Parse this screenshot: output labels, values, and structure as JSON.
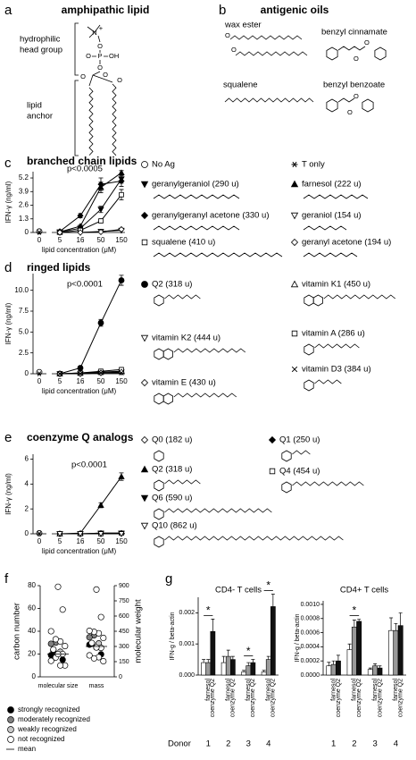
{
  "panel_a": {
    "label": "a",
    "title": "amphipathic lipid",
    "head_label": [
      "hydrophilic",
      "head group"
    ],
    "anchor_label": [
      "lipid",
      "anchor"
    ],
    "atoms": [
      "N",
      "+",
      "O",
      "O",
      "P",
      "OH",
      "O",
      "O",
      "O",
      "O"
    ]
  },
  "panel_b": {
    "label": "b",
    "title": "antigenic oils",
    "compounds": [
      "wax ester",
      "benzyl cinnamate",
      "squalene",
      "benzyl benzoate"
    ],
    "atoms": [
      "O",
      "O",
      "O",
      "O",
      "O",
      "O"
    ]
  },
  "chart_data": [
    {
      "type": "line",
      "panel": "c",
      "title": "branched chain lipids",
      "annotation": "p<0.0005",
      "x_label": "lipid concentration (μM)",
      "y_label": "IFN-γ (ng/ml)",
      "categories": [
        "0",
        "5",
        "16",
        "50",
        "150"
      ],
      "ylim": [
        0,
        5.8
      ],
      "yticks": [
        0,
        1.3,
        2.6,
        3.9,
        5.2
      ],
      "series": [
        {
          "name": "No Ag",
          "marker": "circle-open",
          "color": "#000000",
          "values": [
            0.1,
            null,
            null,
            null,
            null
          ]
        },
        {
          "name": "T only",
          "marker": "asterisk",
          "color": "#000000",
          "values": [
            0,
            null,
            null,
            null,
            null
          ]
        },
        {
          "name": "geranylgeraniol (290 u)",
          "marker": "triangle-down-filled",
          "color": "#000000",
          "values": [
            null,
            0.05,
            0.4,
            2.2,
            5.1
          ],
          "errors": [
            null,
            0.02,
            0.1,
            0.3,
            0.4
          ]
        },
        {
          "name": "farnesol (222 u)",
          "marker": "triangle-up-filled",
          "color": "#000000",
          "values": [
            null,
            0.05,
            0.6,
            4.3,
            5.7
          ],
          "errors": [
            null,
            0.02,
            0.1,
            0.5,
            0.2
          ]
        },
        {
          "name": "geranylgeranyl acetone (330 u)",
          "marker": "diamond-filled",
          "color": "#000000",
          "values": [
            null,
            0.1,
            1.6,
            4.6,
            4.9
          ],
          "errors": [
            null,
            0.05,
            0.2,
            0.6,
            0.5
          ]
        },
        {
          "name": "geraniol (154 u)",
          "marker": "triangle-down-open",
          "color": "#000000",
          "values": [
            null,
            0,
            0,
            0.1,
            0.2
          ]
        },
        {
          "name": "squalene (410 u)",
          "marker": "square-open",
          "color": "#000000",
          "values": [
            null,
            0,
            0.2,
            1.1,
            3.6
          ],
          "errors": [
            null,
            0,
            0.05,
            0.2,
            0.5
          ]
        },
        {
          "name": "geranyl acetone (194 u)",
          "marker": "diamond-open",
          "color": "#000000",
          "values": [
            null,
            0,
            0,
            0.05,
            0.3
          ]
        }
      ]
    },
    {
      "type": "line",
      "panel": "d",
      "title": "ringed lipids",
      "annotation": "p<0.0001",
      "x_label": "lipid concentration (μM)",
      "y_label": "IFN-γ (ng/ml)",
      "categories": [
        "0",
        "5",
        "16",
        "50",
        "150"
      ],
      "ylim": [
        0,
        12
      ],
      "yticks": [
        0,
        2.5,
        {
          "value": 5,
          "label": "5.0"
        },
        7.5,
        {
          "value": 10,
          "label": "10.0"
        }
      ],
      "series": [
        {
          "marker": "circle-open",
          "color": "#000000",
          "values": [
            0.2,
            null,
            null,
            null,
            null
          ]
        },
        {
          "marker": "asterisk",
          "color": "#000000",
          "values": [
            0,
            null,
            null,
            null,
            null
          ]
        },
        {
          "name": "Q2 (318 u)",
          "marker": "circle-filled",
          "color": "#000000",
          "values": [
            null,
            0,
            0.7,
            6.1,
            11.2
          ],
          "errors": [
            null,
            0,
            0.2,
            0.4,
            0.6
          ]
        },
        {
          "name": "vitamin K1 (450 u)",
          "marker": "triangle-up-open",
          "color": "#000000",
          "values": [
            null,
            0,
            0.1,
            0.2,
            0.3
          ]
        },
        {
          "name": "vitamin K2 (444 u)",
          "marker": "triangle-down-open",
          "color": "#000000",
          "values": [
            null,
            0,
            0,
            0.1,
            0.2
          ]
        },
        {
          "name": "vitamin A (286 u)",
          "marker": "square-open",
          "color": "#000000",
          "values": [
            null,
            0,
            0.1,
            0.3,
            0.5
          ]
        },
        {
          "name": "vitamin E (430 u)",
          "marker": "diamond-open",
          "color": "#000000",
          "values": [
            null,
            0,
            0,
            0.1,
            0.2
          ]
        },
        {
          "name": "vitamin D3 (384 u)",
          "marker": "cross",
          "color": "#000000",
          "values": [
            null,
            0,
            0,
            0.1,
            0.1
          ]
        }
      ]
    },
    {
      "type": "line",
      "panel": "e",
      "title": "coenzyme Q analogs",
      "annotation": "p<0.0001",
      "x_label": "lipid concentration (μM)",
      "y_label": "IFN-γ (ng/ml)",
      "categories": [
        "0",
        "5",
        "16",
        "50",
        "150"
      ],
      "ylim": [
        0,
        6.4
      ],
      "yticks": [
        0,
        2,
        4,
        6
      ],
      "series": [
        {
          "marker": "circle-open",
          "color": "#000000",
          "values": [
            0.05,
            null,
            null,
            null,
            null
          ]
        },
        {
          "marker": "asterisk",
          "color": "#000000",
          "values": [
            0,
            null,
            null,
            null,
            null
          ]
        },
        {
          "name": "Q0 (182 u)",
          "marker": "diamond-open",
          "color": "#000000",
          "values": [
            null,
            0,
            0,
            0,
            0.05
          ]
        },
        {
          "name": "Q1 (250 u)",
          "marker": "diamond-filled",
          "color": "#000000",
          "values": [
            null,
            0,
            0,
            0.05,
            0.05
          ]
        },
        {
          "name": "Q2 (318 u)",
          "marker": "triangle-up-filled",
          "color": "#000000",
          "values": [
            null,
            0,
            0.05,
            2.3,
            4.6
          ],
          "errors": [
            null,
            0,
            0,
            0.2,
            0.3
          ]
        },
        {
          "name": "Q4 (454 u)",
          "marker": "square-open",
          "color": "#000000",
          "values": [
            null,
            0,
            0,
            0,
            0.05
          ]
        },
        {
          "name": "Q6 (590 u)",
          "marker": "triangle-down-filled",
          "color": "#000000",
          "values": [
            null,
            0,
            0,
            0.05,
            0.05
          ]
        },
        {
          "name": "Q10 (862 u)",
          "marker": "triangle-down-open",
          "color": "#000000",
          "values": [
            null,
            0,
            0,
            0,
            0
          ]
        }
      ]
    },
    {
      "type": "strip",
      "panel": "f",
      "y_label": "carbon number",
      "y2_label": "molecular weight",
      "categories": [
        "molecular size",
        "mass"
      ],
      "ylim": [
        0,
        80
      ],
      "yticks": [
        0,
        20,
        40,
        60,
        80
      ],
      "y2lim": [
        0,
        900
      ],
      "y2ticks": [
        0,
        150,
        300,
        450,
        600,
        750,
        900
      ],
      "series": [
        {
          "name": "strongly recognized",
          "color": "#000000",
          "values": [
            19,
            15,
            20,
            23
          ],
          "y2_values": [
            318,
            222,
            290,
            330
          ]
        },
        {
          "name": "moderately recognized",
          "color": "#808080",
          "values": [
            30,
            29
          ],
          "y2_values": [
            410,
            390
          ]
        },
        {
          "name": "weakly recognized",
          "color": "#c8c8c8",
          "values": [
            22
          ],
          "y2_values": [
            330
          ]
        },
        {
          "name": "not recognized",
          "color": "#ffffff",
          "values": [
            10,
            10,
            17,
            14,
            20,
            20,
            24,
            27,
            31,
            33,
            40,
            59,
            79
          ],
          "y2_values": [
            154,
            194,
            182,
            212,
            286,
            290,
            334,
            384,
            430,
            444,
            454,
            590,
            862
          ]
        }
      ],
      "mean": {
        "name": "mean",
        "values": [
          20,
          300
        ]
      }
    },
    {
      "type": "bar",
      "panel": "g",
      "title": "CD4- T cells",
      "y_label": "IFN-g / beta-actin",
      "x_label": "Donor",
      "categories": [
        "1",
        "2",
        "3",
        "4"
      ],
      "ylim": [
        0,
        0.0025
      ],
      "yticks": [
        {
          "value": 0,
          "label": "0.000"
        },
        {
          "value": 0.001,
          "label": "0.001"
        },
        {
          "value": 0.002,
          "label": "0.002"
        }
      ],
      "series": [
        {
          "color": "#ffffff",
          "values": [
            0.0004,
            0.0004,
            0.0001,
            0.0001
          ],
          "errors": [
            0.0001,
            0.0002,
            5e-05,
            5e-05
          ]
        },
        {
          "name": "farnesol",
          "color": "#999999",
          "values": [
            0.0004,
            0.0006,
            0.0003,
            0.0005
          ],
          "errors": [
            0.0001,
            0.0002,
            0.0001,
            0.0001
          ]
        },
        {
          "name": "coenzyme Q2",
          "color": "#111111",
          "values": [
            0.0014,
            0.0005,
            0.0004,
            0.0022
          ],
          "errors": [
            0.0004,
            0.0001,
            0.0001,
            0.0004
          ]
        }
      ],
      "significance": [
        {
          "category": 0,
          "label": "*"
        },
        {
          "category": 2,
          "label": "*"
        },
        {
          "category": 3,
          "label": "*"
        }
      ]
    },
    {
      "type": "bar",
      "title": "CD4+ T cells",
      "y_label": "IFN-g / beta-actin",
      "categories": [
        "1",
        "2",
        "3",
        "4"
      ],
      "ylim": [
        0,
        0.00105
      ],
      "yticks": [
        {
          "value": 0,
          "label": "0.0000"
        },
        {
          "value": 0.0002,
          "label": "0.0002"
        },
        {
          "value": 0.0004,
          "label": "0.0004"
        },
        {
          "value": 0.0006,
          "label": "0.0006"
        },
        {
          "value": 0.0008,
          "label": "0.0008"
        },
        {
          "value": 0.001,
          "label": "0.0010"
        }
      ],
      "series": [
        {
          "color": "#ffffff",
          "values": [
            0.00013,
            0.00036,
            8e-05,
            0.00063
          ],
          "errors": [
            5e-05,
            8e-05,
            2e-05,
            0.00018
          ]
        },
        {
          "name": "farnesol",
          "color": "#999999",
          "values": [
            0.00015,
            0.00068,
            0.00013,
            0.00063
          ],
          "errors": [
            5e-05,
            0.0001,
            3e-05,
            0.0001
          ]
        },
        {
          "name": "coenzyme Q2",
          "color": "#111111",
          "values": [
            0.0002,
            0.00076,
            0.0001,
            0.0007
          ],
          "errors": [
            8e-05,
            3e-05,
            3e-05,
            0.00018
          ]
        }
      ],
      "significance": [
        {
          "category": 1,
          "label": "*"
        }
      ]
    }
  ]
}
